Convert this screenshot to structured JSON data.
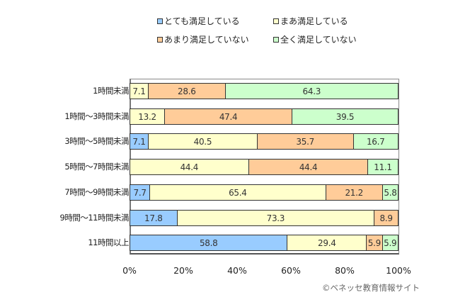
{
  "chart_data": {
    "type": "bar",
    "orientation": "horizontal",
    "stacked": "percent",
    "title": "",
    "xlabel": "",
    "ylabel": "",
    "xlim": [
      0,
      100
    ],
    "x_ticks": [
      "0%",
      "20%",
      "40%",
      "60%",
      "80%",
      "100%"
    ],
    "grid": false,
    "legend_position": "top",
    "categories": [
      "1時間未満",
      "1時間～3時間未満",
      "3時間～5時間未満",
      "5時間～7時間未満",
      "7時間～9時間未満",
      "9時間～11時間未満",
      "11時間以上"
    ],
    "series": [
      {
        "name": "とても満足している",
        "color": "#99ccff",
        "values": [
          0,
          0,
          7.1,
          0,
          7.7,
          17.8,
          58.8
        ]
      },
      {
        "name": "まあ満足している",
        "color": "#ffffcc",
        "values": [
          7.1,
          13.2,
          40.5,
          44.4,
          65.4,
          73.3,
          29.4
        ]
      },
      {
        "name": "あまり満足していない",
        "color": "#ffcc99",
        "values": [
          28.6,
          47.4,
          35.7,
          44.4,
          21.2,
          8.9,
          5.9
        ]
      },
      {
        "name": "全く満足していない",
        "color": "#ccffcc",
        "values": [
          64.3,
          39.5,
          16.7,
          11.1,
          5.8,
          0,
          5.9
        ]
      }
    ]
  },
  "credit": "©ベネッセ教育情報サイト"
}
